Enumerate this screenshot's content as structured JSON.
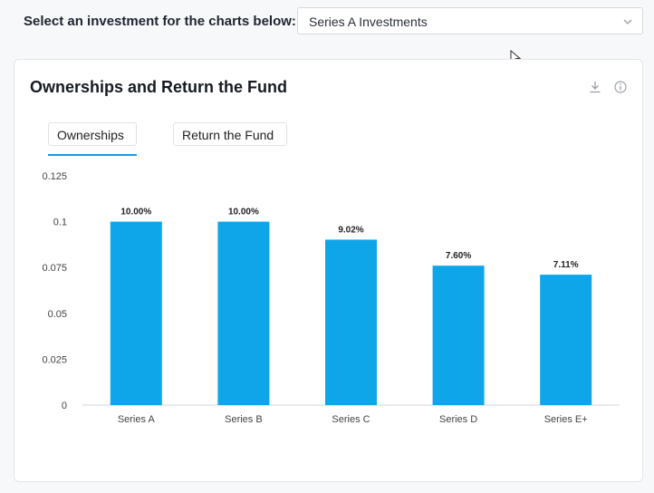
{
  "selector": {
    "label": "Select an investment for the charts below:",
    "value": "Series A Investments",
    "chevron_icon": "chevron-down-icon"
  },
  "card": {
    "title": "Ownerships and Return the Fund",
    "icons": [
      "download-icon",
      "info-icon"
    ]
  },
  "tabs": [
    {
      "label": "Ownerships",
      "active": true
    },
    {
      "label": "Return the Fund",
      "active": false
    }
  ],
  "colors": {
    "bar": "#0ea5e9",
    "accent": "#1b9be0"
  },
  "chart_data": {
    "type": "bar",
    "categories": [
      "Series A",
      "Series B",
      "Series C",
      "Series D",
      "Series E+"
    ],
    "values": [
      0.1,
      0.1,
      0.0902,
      0.076,
      0.0711
    ],
    "data_labels": [
      "10.00%",
      "10.00%",
      "9.02%",
      "7.60%",
      "7.11%"
    ],
    "yticks": [
      "0",
      "0.025",
      "0.05",
      "0.075",
      "0.1",
      "0.125"
    ],
    "ylim": [
      0,
      0.125
    ],
    "grid": false
  }
}
